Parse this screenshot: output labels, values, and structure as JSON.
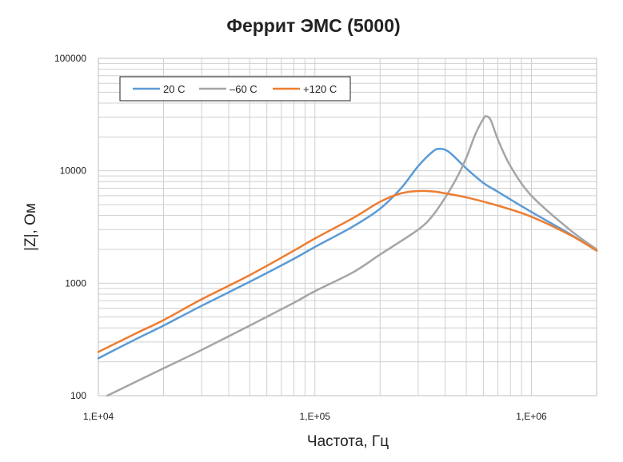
{
  "chart_data": {
    "type": "line",
    "title": "Феррит ЭМС (5000)",
    "xlabel": "Частота, Гц",
    "ylabel": "|Z|, Ом",
    "x_scale": "log",
    "y_scale": "log",
    "xlim": [
      10000,
      2000000
    ],
    "ylim": [
      100,
      100000
    ],
    "x_tick_labels": [
      {
        "value": 10000,
        "label": "1,E+04"
      },
      {
        "value": 100000,
        "label": "1,E+05"
      },
      {
        "value": 1000000,
        "label": "1,E+06"
      }
    ],
    "y_tick_labels": [
      {
        "value": 100,
        "label": "100"
      },
      {
        "value": 1000,
        "label": "1000"
      },
      {
        "value": 10000,
        "label": "10000"
      },
      {
        "value": 100000,
        "label": "100000"
      }
    ],
    "grid": true,
    "legend_position": "top-left",
    "series": [
      {
        "name": "20 C",
        "color": "#5B9BD5",
        "x": [
          10000,
          15000,
          20000,
          30000,
          50000,
          80000,
          100000,
          150000,
          200000,
          250000,
          300000,
          350000,
          380000,
          420000,
          500000,
          600000,
          700000,
          1000000,
          1500000,
          2000000
        ],
        "y": [
          215,
          320,
          420,
          630,
          1030,
          1650,
          2100,
          3200,
          4600,
          7000,
          11000,
          14800,
          15700,
          14500,
          10500,
          7800,
          6500,
          4300,
          2750,
          1950
        ]
      },
      {
        "name": "–60 C",
        "color": "#A5A5A5",
        "x": [
          11000,
          20000,
          30000,
          50000,
          80000,
          100000,
          150000,
          200000,
          300000,
          350000,
          400000,
          450000,
          500000,
          550000,
          600000,
          620000,
          650000,
          700000,
          800000,
          1000000,
          1500000,
          2000000
        ],
        "y": [
          100,
          175,
          255,
          420,
          670,
          850,
          1250,
          1800,
          3000,
          4000,
          5800,
          8500,
          13000,
          21000,
          29000,
          30500,
          28000,
          19000,
          11000,
          6000,
          3000,
          2000
        ]
      },
      {
        "name": "+120 C",
        "color": "#ED7D31",
        "x": [
          10000,
          15000,
          20000,
          30000,
          50000,
          80000,
          100000,
          150000,
          200000,
          250000,
          300000,
          350000,
          400000,
          500000,
          700000,
          1000000,
          1500000,
          2000000
        ],
        "y": [
          245,
          360,
          470,
          720,
          1180,
          1950,
          2500,
          3800,
          5300,
          6300,
          6600,
          6550,
          6300,
          5800,
          4900,
          3900,
          2700,
          1950
        ]
      }
    ]
  }
}
